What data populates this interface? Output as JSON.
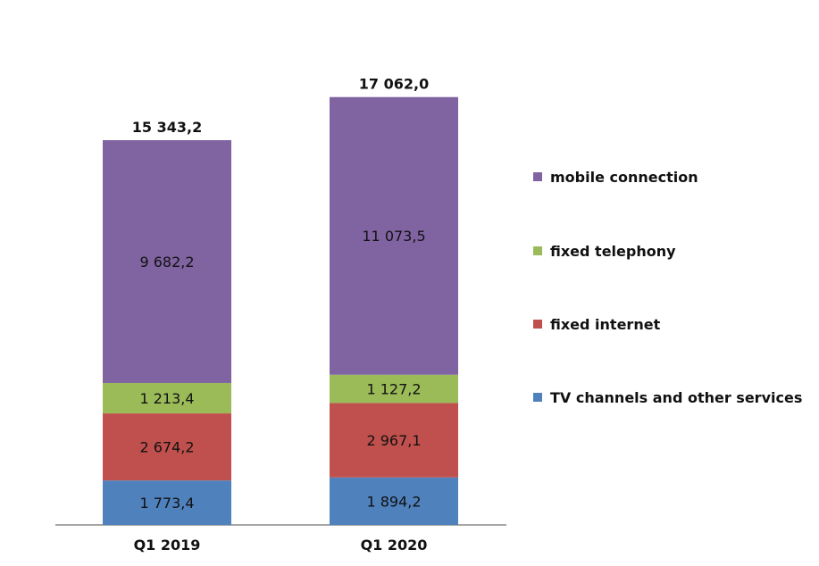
{
  "chart_data": {
    "type": "bar",
    "stacked": true,
    "title": "",
    "xlabel": "",
    "ylabel": "",
    "categories": [
      "Q1 2019",
      "Q1 2020"
    ],
    "totals": [
      15343.2,
      17062.0
    ],
    "total_labels": [
      "15 343,2",
      "17 062,0"
    ],
    "series": [
      {
        "name": "TV channels and other services",
        "color": "#4F81BD",
        "values": [
          1773.4,
          1894.2
        ],
        "labels": [
          "1 773,4",
          "1 894,2"
        ]
      },
      {
        "name": "fixed internet",
        "color": "#C0504D",
        "values": [
          2674.2,
          2967.1
        ],
        "labels": [
          "2 674,2",
          "2 967,1"
        ]
      },
      {
        "name": "fixed telephony",
        "color": "#9BBB59",
        "values": [
          1213.4,
          1127.2
        ],
        "labels": [
          "1 213,4",
          "1 127,2"
        ]
      },
      {
        "name": "mobile connection",
        "color": "#8064A2",
        "values": [
          9682.2,
          11073.5
        ],
        "labels": [
          "9 682,2",
          "11 073,5"
        ]
      }
    ],
    "legend_position": "right",
    "legend_order": [
      "mobile connection",
      "fixed telephony",
      "fixed internet",
      "TV channels and other services"
    ],
    "grid": false
  }
}
